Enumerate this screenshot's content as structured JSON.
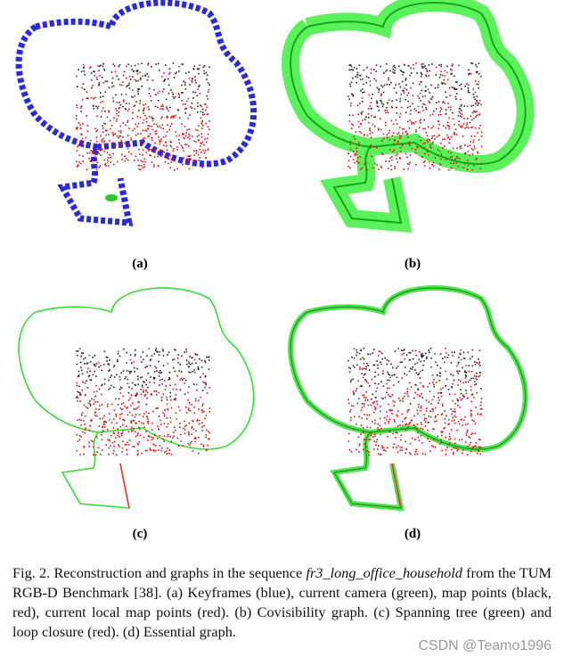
{
  "figure": {
    "panels": [
      {
        "label": "(a)"
      },
      {
        "label": "(b)"
      },
      {
        "label": "(c)"
      },
      {
        "label": "(d)"
      }
    ],
    "caption": {
      "prefix": "Fig. 2.",
      "before": "Reconstruction and graphs in the sequence",
      "sequence": "fr3_long_office_household",
      "after": "from the TUM RGB-D Benchmark [38]. (a) Keyframes (blue), current camera (green), map points (black, red), current local map points (red). (b) Covisibility graph. (c) Spanning tree (green) and loop closure (red). (d) Essential graph."
    }
  },
  "watermark": "CSDN @Teamo1996"
}
